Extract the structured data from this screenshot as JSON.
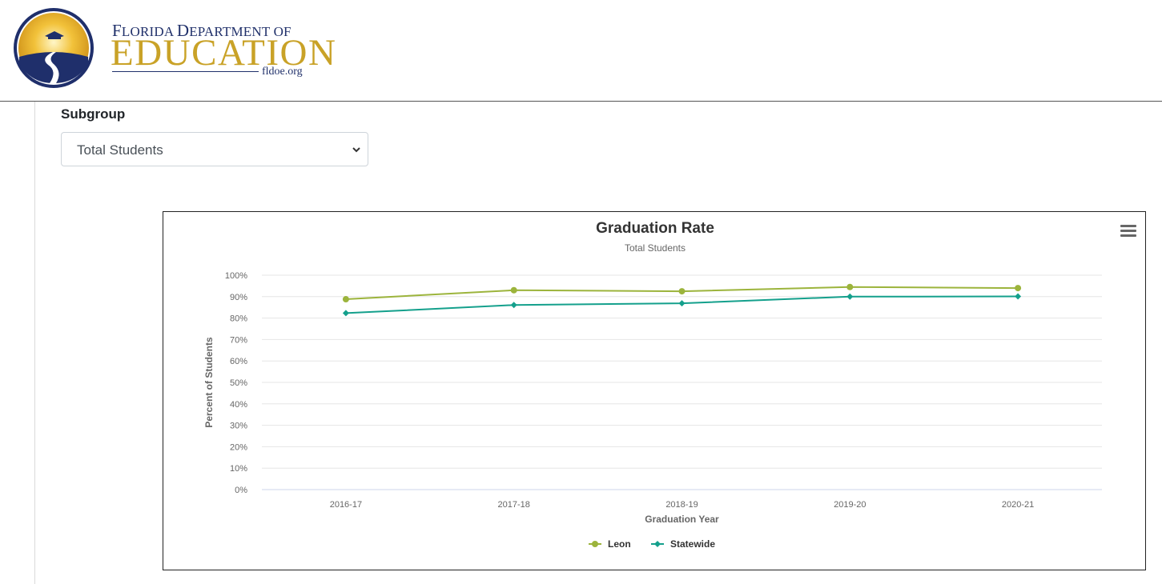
{
  "header": {
    "logo_line1_big": "F",
    "logo_line1_rest": "LORIDA ",
    "logo_line1_d": "D",
    "logo_line1_epartment": "EPARTMENT OF",
    "logo_line2": "EDUCATION",
    "logo_line3": "fldoe.org"
  },
  "filters": {
    "subgroup_label": "Subgroup",
    "subgroup_value": "Total Students"
  },
  "chart_data": {
    "type": "line",
    "title": "Graduation Rate",
    "subtitle": "Total Students",
    "xlabel": "Graduation Year",
    "ylabel": "Percent of Students",
    "categories": [
      "2016-17",
      "2017-18",
      "2018-19",
      "2019-20",
      "2020-21"
    ],
    "ylim": [
      0,
      100
    ],
    "yticks": [
      "0%",
      "10%",
      "20%",
      "30%",
      "40%",
      "50%",
      "60%",
      "70%",
      "80%",
      "90%",
      "100%"
    ],
    "grid": true,
    "legend": "bottom-center",
    "series": [
      {
        "name": "Leon",
        "values": [
          88.8,
          93.0,
          92.5,
          94.5,
          94.0
        ],
        "color": "#9cb43c",
        "marker": "circle"
      },
      {
        "name": "Statewide",
        "values": [
          82.3,
          86.1,
          86.9,
          90.0,
          90.1
        ],
        "color": "#14a08c",
        "marker": "diamond"
      }
    ]
  },
  "icons": {
    "menu": "hamburger-menu-icon",
    "dropdown": "chevron-down-icon"
  }
}
